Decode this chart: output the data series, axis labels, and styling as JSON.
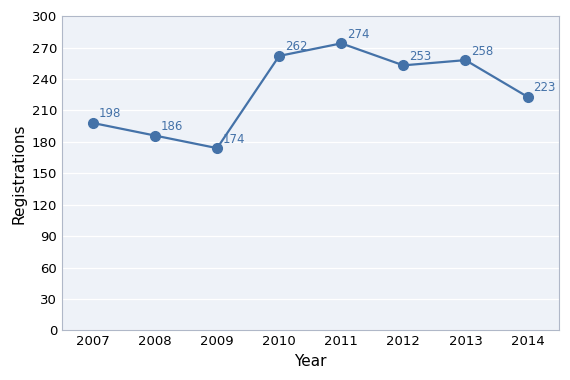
{
  "years": [
    2007,
    2008,
    2009,
    2010,
    2011,
    2012,
    2013,
    2014
  ],
  "values": [
    198,
    186,
    174,
    262,
    274,
    253,
    258,
    223
  ],
  "line_color": "#4472a8",
  "marker_color": "#4472a8",
  "xlabel": "Year",
  "ylabel": "Registrations",
  "ylim": [
    0,
    300
  ],
  "yticks": [
    0,
    30,
    60,
    90,
    120,
    150,
    180,
    210,
    240,
    270,
    300
  ],
  "annotation_fontsize": 8.5,
  "axis_label_fontsize": 11,
  "tick_fontsize": 9.5,
  "background_color": "#ffffff",
  "plot_area_color": "#eef2f8",
  "grid_color": "#ffffff",
  "spine_color": "#b0b8c8",
  "marker_size": 7,
  "line_width": 1.6
}
